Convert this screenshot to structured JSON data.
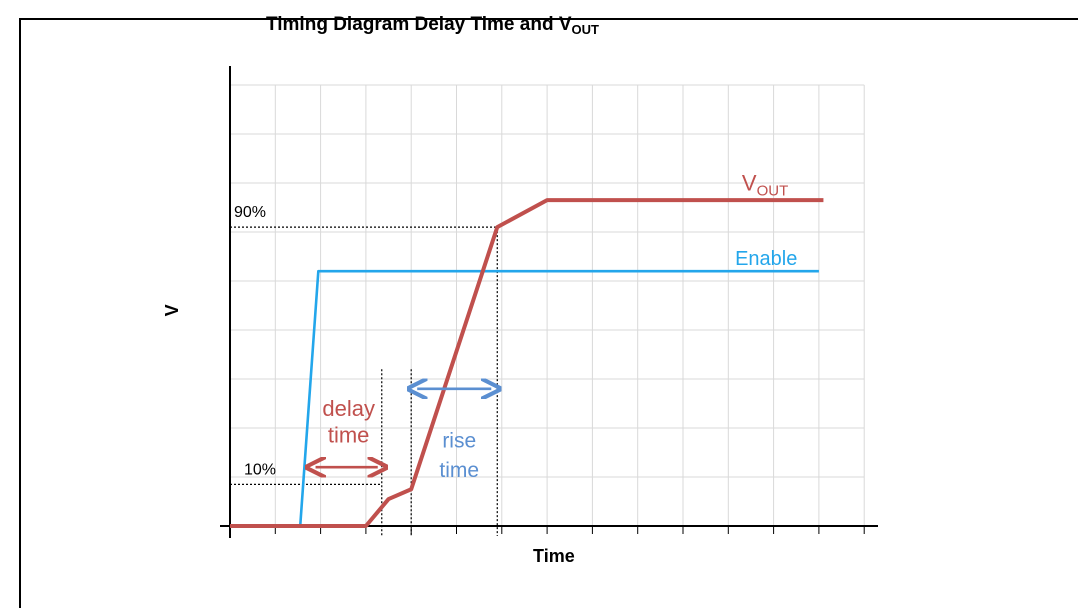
{
  "title": {
    "main": "Timing Diagram Delay Time and V",
    "subscript": "OUT"
  },
  "colors": {
    "vout": "#c0504d",
    "enable": "#23a6eb",
    "rise_label": "#5b8fd1",
    "grid": "#d9d9d9",
    "axis": "#000000"
  },
  "chart_data": {
    "type": "line",
    "xlabel": "Time",
    "ylabel": "V",
    "xlim": [
      0,
      14
    ],
    "ylim": [
      0,
      9
    ],
    "grid": true,
    "series": [
      {
        "name": "Enable",
        "color": "#23a6eb",
        "x": [
          1.55,
          1.95,
          13.0
        ],
        "y": [
          0,
          5.2,
          5.2
        ]
      },
      {
        "name": "V_OUT",
        "color": "#c0504d",
        "x": [
          0,
          3.0,
          3.5,
          4.0,
          5.9,
          7.0,
          13.1
        ],
        "y": [
          0,
          0,
          0.55,
          0.75,
          6.1,
          6.65,
          6.65
        ]
      }
    ],
    "reference_lines": [
      {
        "label": "90%",
        "y": 6.1
      },
      {
        "label": "10%",
        "y": 0.85
      }
    ],
    "annotations": {
      "delay": {
        "line1": "delay",
        "line2": "time",
        "from": 1.8,
        "to": 3.35
      },
      "rise": {
        "line1": "rise",
        "line2": "time",
        "from": 4.0,
        "to": 5.9
      }
    },
    "series_labels": {
      "vout_main": "V",
      "vout_sub": "OUT",
      "enable": "Enable"
    }
  }
}
